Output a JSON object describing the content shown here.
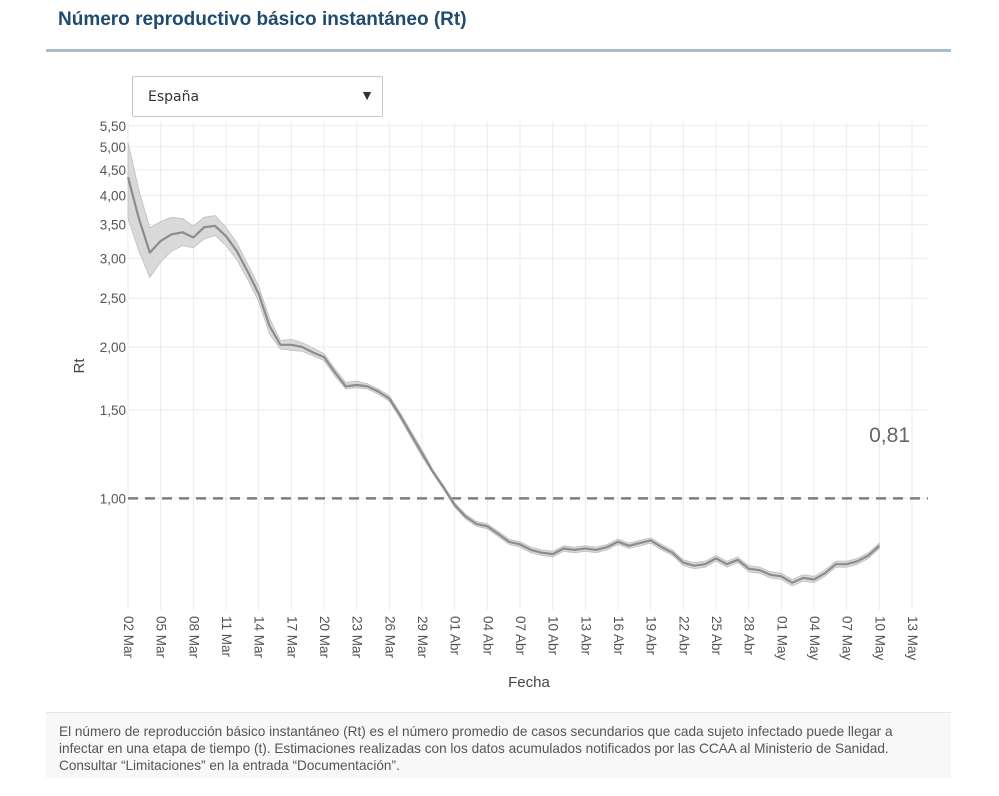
{
  "header": {
    "title": "Número reproductivo básico instantáneo (Rt)"
  },
  "region_select": {
    "selected": "España"
  },
  "footnote": {
    "text": "El número de reproducción básico instantáneo (Rt) es el número promedio de casos secundarios que cada sujeto infectado puede llegar a infectar en una etapa de tiempo (t). Estimaciones realizadas con los datos acumulados notificados por las CCAA al Ministerio de Sanidad. Consultar “Limitaciones” en la entrada “Documentación”."
  },
  "chart_data": {
    "type": "line",
    "xlabel": "Fecha",
    "ylabel": "Rt",
    "y_scale": "log",
    "ylim": [
      0.6,
      5.6
    ],
    "y_ticks": [
      5.5,
      5.0,
      4.5,
      4.0,
      3.5,
      3.0,
      2.5,
      2.0,
      1.5,
      1.0
    ],
    "y_tick_labels": [
      "5,50",
      "5,00",
      "4,50",
      "4,00",
      "3,50",
      "3,00",
      "2,50",
      "2,00",
      "1,50",
      "1,00"
    ],
    "x_tick_labels": [
      "02 Mar",
      "05 Mar",
      "08 Mar",
      "11 Mar",
      "14 Mar",
      "17 Mar",
      "20 Mar",
      "23 Mar",
      "26 Mar",
      "29 Mar",
      "01 Abr",
      "04 Abr",
      "07 Abr",
      "10 Abr",
      "13 Abr",
      "16 Abr",
      "19 Abr",
      "22 Abr",
      "25 Abr",
      "28 Abr",
      "01 May",
      "04 May",
      "07 May",
      "10 May",
      "13 May"
    ],
    "reference_line": {
      "y": 1.0,
      "style": "dashed"
    },
    "last_value_label": "0,81",
    "grid": true,
    "series": [
      {
        "x": [
          "2020-03-02",
          "2020-03-03",
          "2020-03-04",
          "2020-03-05",
          "2020-03-06",
          "2020-03-07",
          "2020-03-08",
          "2020-03-09",
          "2020-03-10",
          "2020-03-11",
          "2020-03-12",
          "2020-03-13",
          "2020-03-14",
          "2020-03-15",
          "2020-03-16",
          "2020-03-17",
          "2020-03-18",
          "2020-03-19",
          "2020-03-20",
          "2020-03-21",
          "2020-03-22",
          "2020-03-23",
          "2020-03-24",
          "2020-03-25",
          "2020-03-26",
          "2020-03-27",
          "2020-03-28",
          "2020-03-29",
          "2020-03-30",
          "2020-03-31",
          "2020-04-01",
          "2020-04-02",
          "2020-04-03",
          "2020-04-04",
          "2020-04-05",
          "2020-04-06",
          "2020-04-07",
          "2020-04-08",
          "2020-04-09",
          "2020-04-10",
          "2020-04-11",
          "2020-04-12",
          "2020-04-13",
          "2020-04-14",
          "2020-04-15",
          "2020-04-16",
          "2020-04-17",
          "2020-04-18",
          "2020-04-19",
          "2020-04-20",
          "2020-04-21",
          "2020-04-22",
          "2020-04-23",
          "2020-04-24",
          "2020-04-25",
          "2020-04-26",
          "2020-04-27",
          "2020-04-28",
          "2020-04-29",
          "2020-04-30",
          "2020-05-01",
          "2020-05-02",
          "2020-05-03",
          "2020-05-04",
          "2020-05-05",
          "2020-05-06",
          "2020-05-07",
          "2020-05-08",
          "2020-05-09",
          "2020-05-10"
        ],
        "values": [
          4.35,
          3.6,
          3.08,
          3.25,
          3.35,
          3.38,
          3.3,
          3.46,
          3.48,
          3.32,
          3.1,
          2.82,
          2.55,
          2.2,
          2.02,
          2.02,
          2.0,
          1.95,
          1.91,
          1.78,
          1.67,
          1.68,
          1.67,
          1.63,
          1.58,
          1.46,
          1.34,
          1.23,
          1.13,
          1.05,
          0.97,
          0.92,
          0.89,
          0.88,
          0.85,
          0.82,
          0.81,
          0.79,
          0.78,
          0.775,
          0.795,
          0.79,
          0.795,
          0.79,
          0.8,
          0.82,
          0.805,
          0.815,
          0.825,
          0.8,
          0.78,
          0.745,
          0.735,
          0.74,
          0.76,
          0.74,
          0.755,
          0.725,
          0.72,
          0.705,
          0.7,
          0.68,
          0.695,
          0.69,
          0.71,
          0.74,
          0.74,
          0.75,
          0.77,
          0.805
        ],
        "lower": [
          3.6,
          3.1,
          2.75,
          2.95,
          3.1,
          3.18,
          3.15,
          3.28,
          3.33,
          3.18,
          2.98,
          2.72,
          2.46,
          2.12,
          1.98,
          1.97,
          1.96,
          1.92,
          1.88,
          1.75,
          1.65,
          1.66,
          1.65,
          1.61,
          1.56,
          1.44,
          1.32,
          1.21,
          1.12,
          1.04,
          0.96,
          0.91,
          0.88,
          0.87,
          0.84,
          0.81,
          0.8,
          0.78,
          0.77,
          0.765,
          0.785,
          0.78,
          0.785,
          0.78,
          0.79,
          0.81,
          0.795,
          0.805,
          0.815,
          0.79,
          0.77,
          0.735,
          0.725,
          0.73,
          0.75,
          0.73,
          0.745,
          0.715,
          0.71,
          0.695,
          0.69,
          0.67,
          0.685,
          0.68,
          0.7,
          0.73,
          0.73,
          0.74,
          0.76,
          0.795
        ],
        "upper": [
          5.1,
          4.1,
          3.45,
          3.55,
          3.62,
          3.6,
          3.48,
          3.62,
          3.65,
          3.46,
          3.22,
          2.92,
          2.64,
          2.28,
          2.06,
          2.07,
          2.04,
          1.99,
          1.94,
          1.81,
          1.7,
          1.71,
          1.69,
          1.65,
          1.6,
          1.48,
          1.36,
          1.25,
          1.14,
          1.06,
          0.98,
          0.93,
          0.9,
          0.89,
          0.86,
          0.83,
          0.82,
          0.8,
          0.79,
          0.785,
          0.805,
          0.8,
          0.805,
          0.8,
          0.81,
          0.83,
          0.815,
          0.825,
          0.835,
          0.81,
          0.79,
          0.755,
          0.745,
          0.75,
          0.77,
          0.75,
          0.765,
          0.735,
          0.73,
          0.715,
          0.71,
          0.69,
          0.705,
          0.7,
          0.72,
          0.75,
          0.75,
          0.76,
          0.78,
          0.815
        ]
      }
    ],
    "colors": {
      "line": "#8c8c8c",
      "band": "#d9d9d9",
      "reference": "#7f7f7f",
      "grid": "#ebebeb",
      "axis_text": "#555555"
    }
  }
}
